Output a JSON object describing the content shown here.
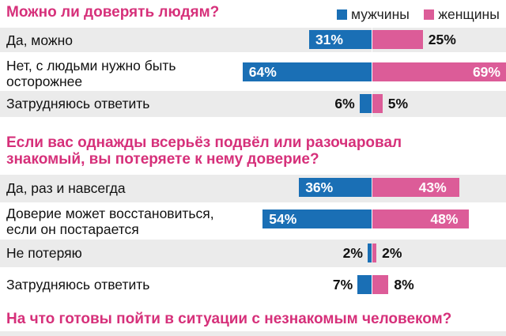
{
  "legend": {
    "male": {
      "label": "мужчины",
      "color": "#1a6fb5"
    },
    "female": {
      "label": "женщины",
      "color": "#dc5c98"
    }
  },
  "chart_data": [
    {
      "type": "bar",
      "title": "Можно ли доверять людям?",
      "categories": [
        "Да, можно",
        "Нет, с людьми нужно быть\nосторожнее",
        "Затрудняюсь ответить"
      ],
      "series": [
        {
          "name": "мужчины",
          "values": [
            31,
            64,
            6
          ]
        },
        {
          "name": "женщины",
          "values": [
            25,
            69,
            5
          ]
        }
      ]
    },
    {
      "type": "bar",
      "title": "Если вас однажды всерьёз подвёл или разочаровал\nзнакомый, вы потеряете к нему доверие?",
      "categories": [
        "Да, раз и навсегда",
        "Доверие может восстановиться,\nесли он постарается",
        "Не потеряю",
        "Затрудняюсь ответить"
      ],
      "series": [
        {
          "name": "мужчины",
          "values": [
            36,
            54,
            2,
            7
          ]
        },
        {
          "name": "женщины",
          "values": [
            43,
            48,
            2,
            8
          ]
        }
      ]
    },
    {
      "type": "bar",
      "title": "На что готовы пойти в ситуации с незнакомым человеком?",
      "categories": [],
      "series": []
    }
  ]
}
